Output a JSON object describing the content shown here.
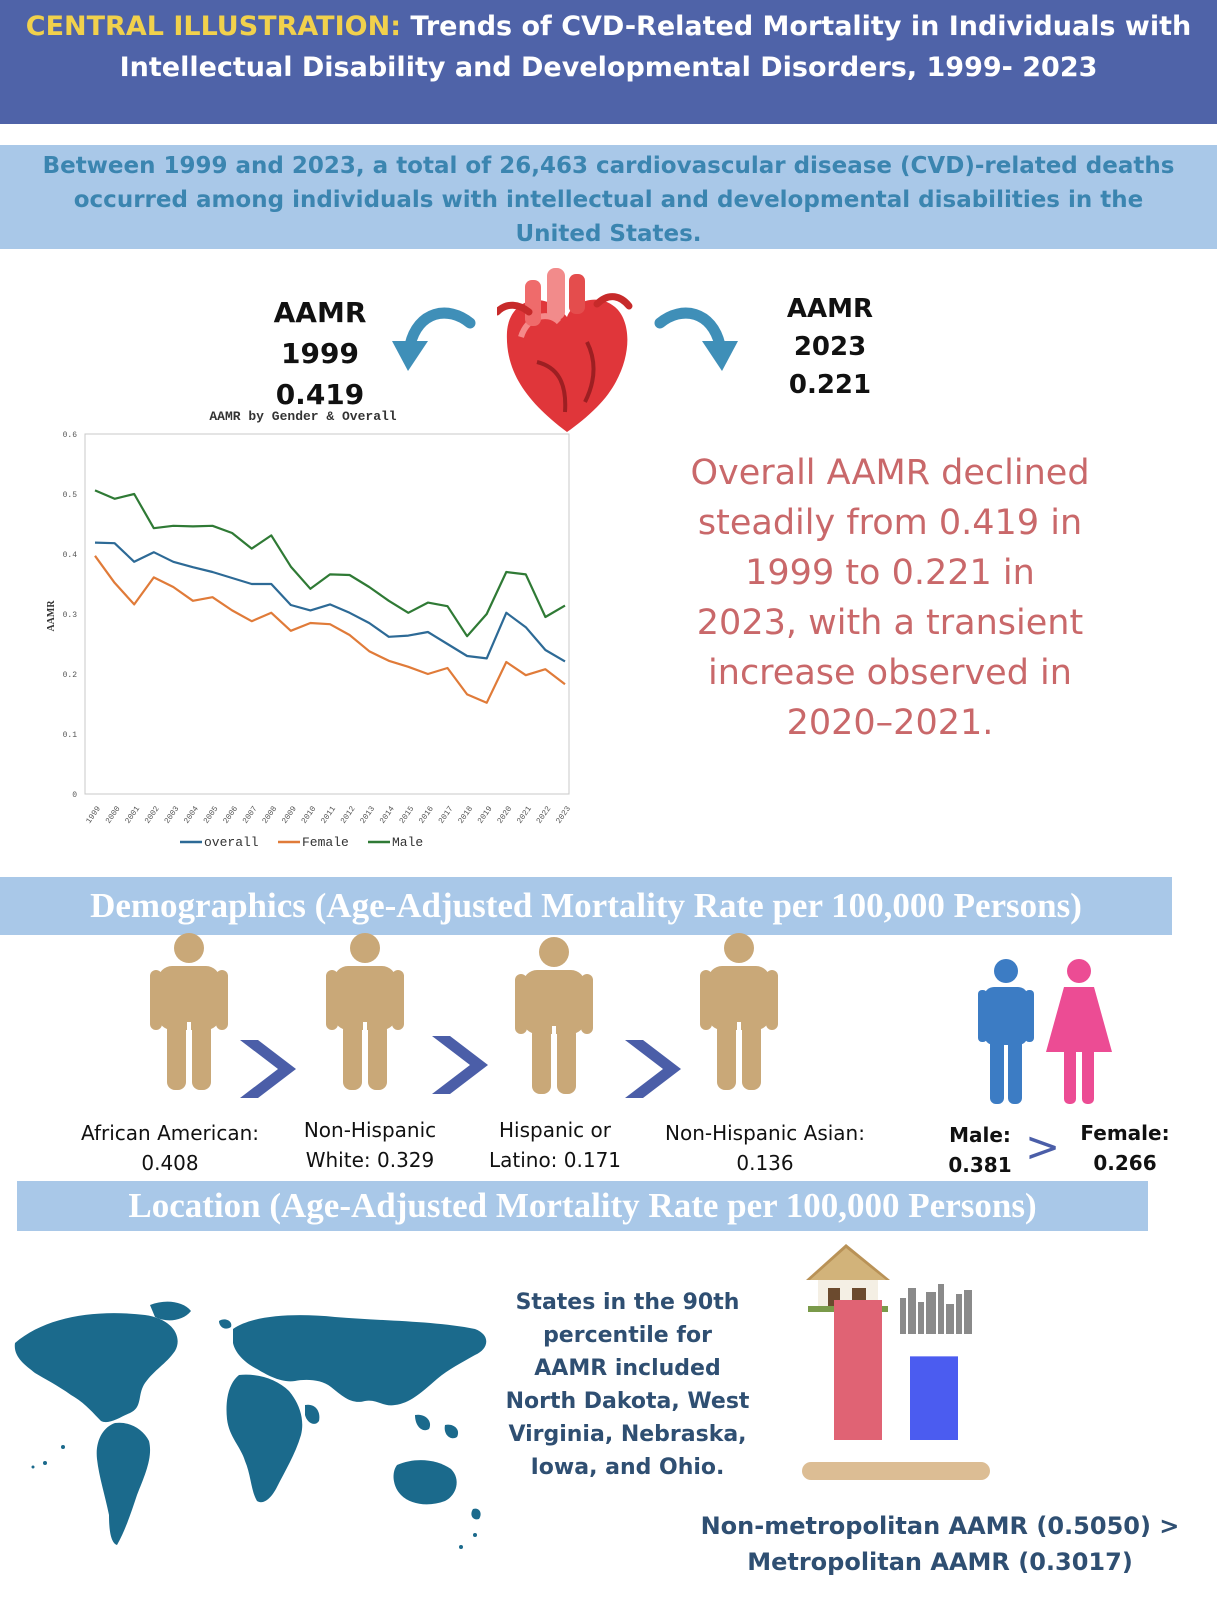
{
  "header": {
    "label": "CENTRAL ILLUSTRATION:",
    "title_part1": "Trends of CVD-Related Mortality in Individuals with",
    "title_part2": "Intellectual Disability and Developmental Disorders, 1999- 2023"
  },
  "intro": "Between 1999 and 2023, a total of 26,463 cardiovascular disease (CVD)-related deaths occurred among individuals with intellectual and developmental disabilities in the United States.",
  "aamr_start": {
    "label": "AAMR",
    "year": "1999",
    "value": "0.419"
  },
  "aamr_end": {
    "label": "AAMR",
    "year": "2023",
    "value": "0.221"
  },
  "summary": "Overall AAMR declined steadily from 0.419 in 1999 to 0.221 in 2023, with a transient increase observed in 2020–2021.",
  "colors": {
    "header_bg": "#4f63a8",
    "header_accent": "#f1d14c",
    "band_bg": "#a9c8e8",
    "overall": "#2d6a96",
    "female": "#e07b39",
    "male": "#2f7a35",
    "person": "#c9a878",
    "chevron": "#4b5ea8",
    "male_icon": "#3c7cc4",
    "female_icon": "#ec4c94",
    "bar_nonmetro": "#e06374",
    "bar_metro": "#4b5cf0",
    "summary_text": "#c9686a",
    "map": "#1b6a8c"
  },
  "chart_data": {
    "type": "line",
    "title": "AAMR by Gender & Overall",
    "xlabel": "",
    "ylabel": "AAMR",
    "ylim": [
      0,
      0.6
    ],
    "yticks": [
      "0",
      "0.1",
      "0.2",
      "0.3",
      "0.4",
      "0.5",
      "0.6"
    ],
    "x": [
      "1999",
      "2000",
      "2001",
      "2002",
      "2003",
      "2004",
      "2005",
      "2006",
      "2007",
      "2008",
      "2009",
      "2010",
      "2011",
      "2012",
      "2013",
      "2014",
      "2015",
      "2016",
      "2017",
      "2018",
      "2019",
      "2020",
      "2021",
      "2022",
      "2023"
    ],
    "series": [
      {
        "name": "overall",
        "values": [
          0.419,
          0.418,
          0.387,
          0.403,
          0.387,
          0.378,
          0.37,
          0.36,
          0.35,
          0.35,
          0.315,
          0.306,
          0.316,
          0.302,
          0.285,
          0.262,
          0.264,
          0.27,
          0.25,
          0.23,
          0.226,
          0.302,
          0.278,
          0.24,
          0.221
        ]
      },
      {
        "name": "Female",
        "values": [
          0.397,
          0.352,
          0.316,
          0.361,
          0.345,
          0.322,
          0.328,
          0.306,
          0.288,
          0.302,
          0.272,
          0.285,
          0.283,
          0.265,
          0.238,
          0.222,
          0.212,
          0.2,
          0.21,
          0.166,
          0.152,
          0.22,
          0.198,
          0.208,
          0.183
        ]
      },
      {
        "name": "Male",
        "values": [
          0.506,
          0.492,
          0.5,
          0.443,
          0.447,
          0.446,
          0.447,
          0.435,
          0.409,
          0.431,
          0.379,
          0.342,
          0.366,
          0.365,
          0.345,
          0.322,
          0.302,
          0.319,
          0.313,
          0.263,
          0.3,
          0.37,
          0.366,
          0.295,
          0.314
        ]
      }
    ],
    "legend": "bottom"
  },
  "demographics": {
    "title": "Demographics (Age-Adjusted Mortality Rate per 100,000 Persons)",
    "groups": [
      {
        "line1": "African American:",
        "line2": "0.408"
      },
      {
        "line1": "Non-Hispanic",
        "line2": "White: 0.329"
      },
      {
        "line1": "Hispanic or",
        "line2": "Latino: 0.171"
      },
      {
        "line1": "Non-Hispanic Asian:",
        "line2": "0.136"
      }
    ],
    "male": {
      "label": "Male:",
      "value": "0.381"
    },
    "female": {
      "label": "Female:",
      "value": "0.266"
    },
    "sex_compare": ">"
  },
  "location": {
    "title": "Location (Age-Adjusted Mortality Rate per 100,000 Persons)",
    "states_text": "States in the 90th percentile for AAMR included North Dakota, West Virginia, Nebraska, Iowa, and Ohio.",
    "metro_line1": "Non-metropolitan AAMR (0.5050) >",
    "metro_line2": "Metropolitan AAMR (0.3017)",
    "bars": [
      {
        "name": "Non-metropolitan",
        "value": 0.505
      },
      {
        "name": "Metropolitan",
        "value": 0.3017
      }
    ]
  }
}
